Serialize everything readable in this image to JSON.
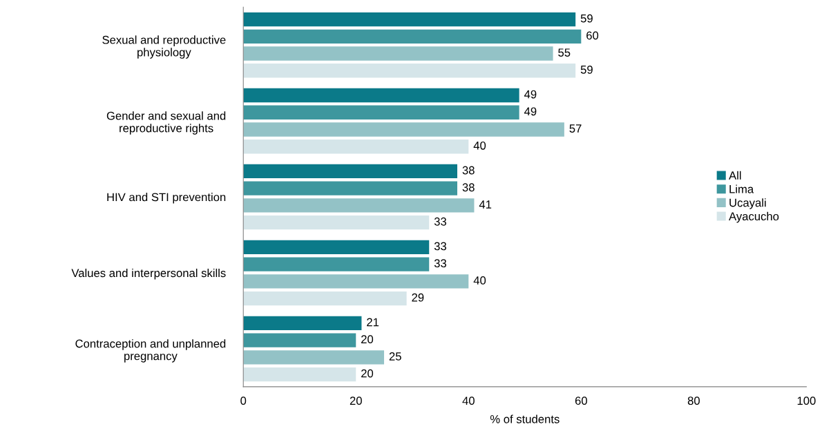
{
  "chart_data": {
    "type": "bar",
    "orientation": "horizontal",
    "xlabel": "% of students",
    "categories": [
      "Sexual and reproductive\nphysiology",
      "Gender and sexual and\nreproductive rights",
      "HIV and STI prevention",
      "Values and interpersonal skills",
      "Contraception and unplanned\npregnancy"
    ],
    "series": [
      {
        "name": "All",
        "color": "#0b7a89",
        "values": [
          59,
          49,
          38,
          33,
          21
        ]
      },
      {
        "name": "Lima",
        "color": "#3e979e",
        "values": [
          60,
          49,
          38,
          33,
          20
        ]
      },
      {
        "name": "Ucayali",
        "color": "#93c2c6",
        "values": [
          55,
          57,
          41,
          40,
          25
        ]
      },
      {
        "name": "Ayacucho",
        "color": "#d5e5e9",
        "values": [
          59,
          40,
          33,
          29,
          20
        ]
      }
    ],
    "xlim": [
      0,
      100
    ],
    "xticks": [
      0,
      20,
      40,
      60,
      80,
      100
    ],
    "data_labels": true,
    "legend": "right",
    "grid": false
  }
}
